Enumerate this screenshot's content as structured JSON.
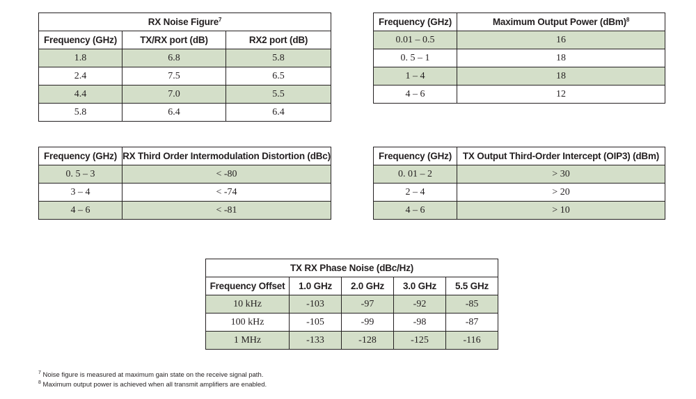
{
  "noise_figure": {
    "title": "RX Noise Figure",
    "title_sup": "7",
    "headers": [
      "Frequency (GHz)",
      "TX/RX port (dB)",
      "RX2 port (dB)"
    ],
    "rows": [
      [
        "1.8",
        "6.8",
        "5.8"
      ],
      [
        "2.4",
        "7.5",
        "6.5"
      ],
      [
        "4.4",
        "7.0",
        "5.5"
      ],
      [
        "5.8",
        "6.4",
        "6.4"
      ]
    ]
  },
  "output_power": {
    "headers": [
      "Frequency (GHz)",
      "Maximum Output Power (dBm)"
    ],
    "header_sup": "8",
    "rows": [
      [
        "0.01 – 0.5",
        "16"
      ],
      [
        "0. 5 – 1",
        "18"
      ],
      [
        "1 – 4",
        "18"
      ],
      [
        "4 – 6",
        "12"
      ]
    ]
  },
  "imd": {
    "headers": [
      "Frequency (GHz)",
      "RX Third Order Intermodulation Distortion (dBc)"
    ],
    "rows": [
      [
        "0. 5 – 3",
        "< -80"
      ],
      [
        "3 – 4",
        "< -74"
      ],
      [
        "4 – 6",
        "< -81"
      ]
    ]
  },
  "oip3": {
    "headers": [
      "Frequency (GHz)",
      "TX Output Third-Order Intercept (OIP3) (dBm)"
    ],
    "rows": [
      [
        "0. 01 – 2",
        "> 30"
      ],
      [
        "2 – 4",
        "> 20"
      ],
      [
        "4 – 6",
        "> 10"
      ]
    ]
  },
  "phase_noise": {
    "title": "TX RX Phase Noise (dBc/Hz)",
    "headers": [
      "Frequency Offset",
      "1.0 GHz",
      "2.0 GHz",
      "3.0 GHz",
      "5.5 GHz"
    ],
    "rows": [
      [
        "10 kHz",
        "-103",
        "-97",
        "-92",
        "-85"
      ],
      [
        "100 kHz",
        "-105",
        "-99",
        "-98",
        "-87"
      ],
      [
        "1 MHz",
        "-133",
        "-128",
        "-125",
        "-116"
      ]
    ]
  },
  "footnotes": [
    {
      "num": "7",
      "text": "Noise figure is measured at maximum gain state on the receive signal path."
    },
    {
      "num": "8",
      "text": "Maximum output power is achieved when all transmit amplifiers are enabled."
    }
  ]
}
